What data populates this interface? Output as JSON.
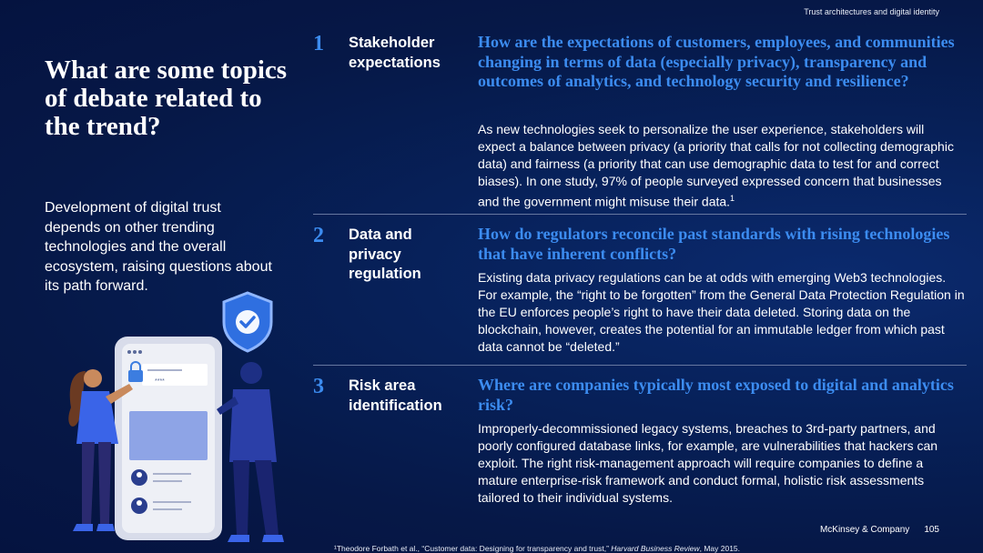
{
  "header": {
    "section": "Trust architectures and digital identity"
  },
  "left": {
    "title": "What are some topics of debate related to the trend?",
    "subtitle": "Development of digital trust depends on other trending technologies and the overall ecosystem, raising questions about its path forward.",
    "illustration": {
      "screen_mask": "****",
      "check_icon": "check-icon"
    }
  },
  "rows": [
    {
      "number": "1",
      "label": "Stakeholder expectations",
      "question": "How are the expectations of customers, employees, and communities changing in terms of data (especially privacy), transparency and outcomes of analytics, and technology security and resilience?",
      "body": "As new technologies seek to personalize the user experience, stakeholders will expect a balance between privacy (a priority that calls for not collecting demographic data) and fairness (a priority that can use demographic data to test for and correct biases). In one study, 97% of people surveyed expressed concern that businesses and the government might misuse their data.",
      "footnote_ref": "1"
    },
    {
      "number": "2",
      "label": "Data and privacy regulation",
      "question": "How do regulators reconcile past standards with rising technologies that have inherent conflicts?",
      "body": "Existing data privacy regulations can be at odds with emerging Web3 technologies. For example, the “right to be forgotten” from the General Data Protection Regulation in the EU enforces people’s right to have their data deleted. Storing data on the blockchain, however, creates the potential for an immutable ledger from which past data cannot be “deleted.”"
    },
    {
      "number": "3",
      "label": "Risk area identification",
      "question": "Where are companies typically most exposed to digital and analytics risk?",
      "body": "Improperly-decommissioned legacy systems, breaches to 3rd-party partners, and poorly configured database links, for example, are vulnerabilities that hackers can exploit. The right risk-management approach will require companies to define a mature enterprise-risk framework and conduct formal, holistic risk assessments tailored to their individual systems."
    }
  ],
  "footer": {
    "brand": "McKinsey & Company",
    "page_number": "105",
    "footnote_prefix": "¹Theodore Forbath et al., “Customer data: Designing for transparency and trust,” ",
    "footnote_source": "Harvard Business Review",
    "footnote_suffix": ", May 2015."
  },
  "colors": {
    "accent": "#3c8cf0",
    "background": "#061847",
    "separator": "#6677a0"
  }
}
